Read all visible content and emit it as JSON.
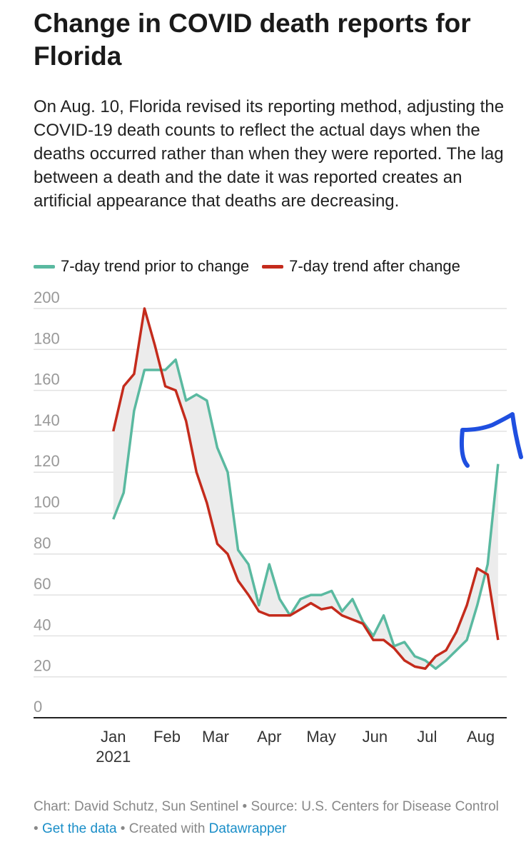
{
  "chart_data": {
    "type": "line",
    "title": "Change in COVID death reports for Florida",
    "subtitle": "On Aug. 10, Florida revised its reporting method, adjusting the COVID-19 death counts to reflect the actual days when the deaths occurred rather than when they were reported. The lag between a death and the date it was reported creates an artificial appearance that deaths are decreasing.",
    "x": [
      0,
      6,
      12,
      18,
      24,
      30,
      36,
      42,
      48,
      54,
      60,
      66,
      72,
      78,
      84,
      90,
      96,
      102,
      108,
      114,
      120,
      126,
      132,
      138,
      144,
      150,
      156,
      162,
      168,
      174,
      180,
      186,
      192,
      198,
      204,
      210,
      216,
      222
    ],
    "series": [
      {
        "name": "7-day trend prior to change",
        "color": "#5ab9a0",
        "values": [
          97,
          110,
          150,
          170,
          170,
          170,
          175,
          155,
          158,
          155,
          132,
          120,
          82,
          75,
          55,
          75,
          58,
          50,
          58,
          60,
          60,
          62,
          52,
          58,
          47,
          40,
          50,
          35,
          37,
          30,
          28,
          24,
          28,
          33,
          38,
          55,
          75,
          124
        ]
      },
      {
        "name": "7-day trend after change",
        "color": "#c42b1c",
        "values": [
          140,
          162,
          168,
          200,
          182,
          162,
          160,
          145,
          120,
          105,
          85,
          80,
          67,
          60,
          52,
          50,
          50,
          50,
          53,
          56,
          53,
          54,
          50,
          48,
          46,
          38,
          38,
          34,
          28,
          25,
          24,
          30,
          33,
          42,
          55,
          73,
          70,
          38
        ]
      }
    ],
    "xlim": [
      -46,
      227
    ],
    "xticks": [
      {
        "value": 0,
        "label": "Jan"
      },
      {
        "value": 31,
        "label": "Feb"
      },
      {
        "value": 59,
        "label": "Mar"
      },
      {
        "value": 90,
        "label": "Apr"
      },
      {
        "value": 120,
        "label": "May"
      },
      {
        "value": 151,
        "label": "Jun"
      },
      {
        "value": 181,
        "label": "Jul"
      },
      {
        "value": 212,
        "label": "Aug"
      }
    ],
    "x_year": "2021",
    "ylim": [
      0,
      200
    ],
    "yticks": [
      0,
      20,
      40,
      60,
      80,
      100,
      120,
      140,
      160,
      180,
      200
    ],
    "grid": true,
    "footer": [
      "Chart: David Schutz, Sun Sentinel • Source: U.S. Centers for Disease Control • ",
      "Get the data",
      " • Created with ",
      "Datawrapper"
    ]
  }
}
